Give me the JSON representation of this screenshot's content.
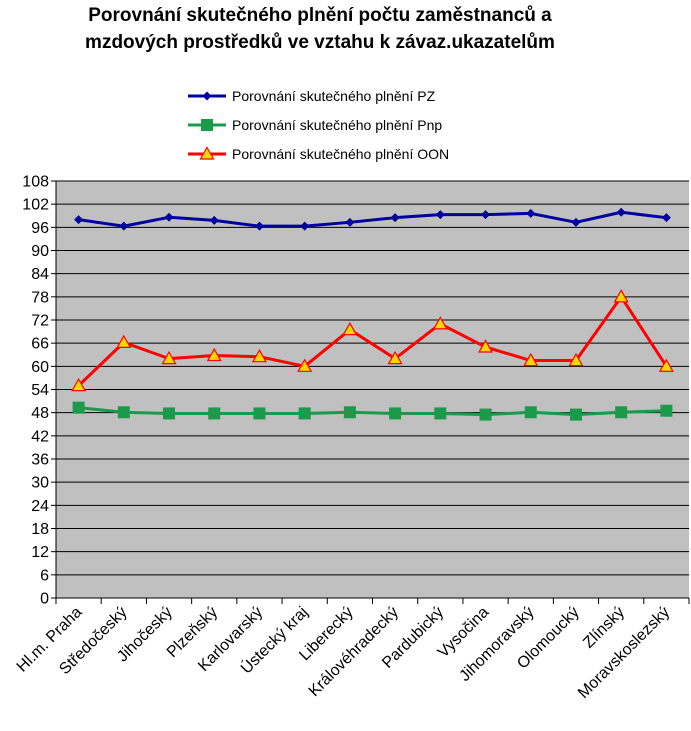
{
  "chart_data": {
    "type": "line",
    "title_lines": [
      "Porovnání skutečného plnění počtu zaměstnanců a",
      "mzdových prostředků ve vztahu k závaz.ukazatelům"
    ],
    "categories": [
      "Hl.m. Praha",
      "Středočeský",
      "Jihočeský",
      "Plzeňský",
      "Karlovarský",
      "Ústecký kraj",
      "Liberecký",
      "Královéhradecký",
      "Pardubický",
      "Vysočina",
      "Jihomoravský",
      "Olomoucký",
      "Zlínský",
      "Moravskoslezský"
    ],
    "y_ticks": [
      "0",
      "6",
      "12",
      "18",
      "24",
      "30",
      "36",
      "42",
      "48",
      "54",
      "60",
      "66",
      "72",
      "78",
      "84",
      "90",
      "96",
      "102",
      "108"
    ],
    "ylim": [
      0,
      108
    ],
    "grid": true,
    "legend_position": "top",
    "series": [
      {
        "name": "Porovnání skutečného plnění PZ",
        "color": "#0000a0",
        "marker": "diamond",
        "values": [
          98.0,
          96.3,
          98.6,
          97.8,
          96.3,
          96.3,
          97.3,
          98.5,
          99.3,
          99.3,
          99.6,
          97.3,
          99.9,
          98.5
        ]
      },
      {
        "name": "Porovnání skutečného plnění Pnp",
        "color": "#1a9a4a",
        "marker": "square",
        "values": [
          49.3,
          48.1,
          47.8,
          47.8,
          47.8,
          47.8,
          48.1,
          47.8,
          47.8,
          47.5,
          48.1,
          47.5,
          48.1,
          48.5
        ]
      },
      {
        "name": "Porovnání skutečného plnění OON",
        "color": "#ff0000",
        "marker": "triangle",
        "values": [
          55.0,
          66.2,
          62.0,
          62.8,
          62.5,
          60.0,
          69.5,
          62.0,
          71.0,
          65.0,
          61.5,
          61.5,
          78.0,
          60.0
        ]
      }
    ]
  }
}
